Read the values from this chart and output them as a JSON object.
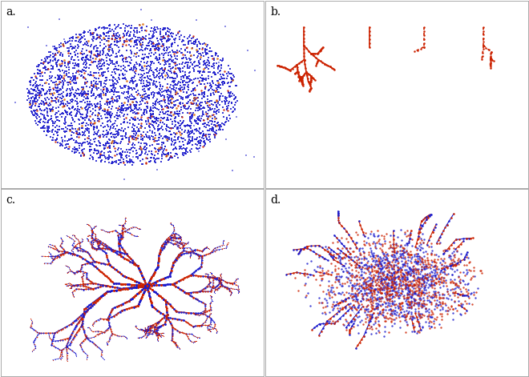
{
  "fig_width": 6.6,
  "fig_height": 4.71,
  "dpi": 100,
  "background_color": "#ffffff",
  "panel_labels": [
    "a.",
    "b.",
    "c.",
    "d."
  ],
  "label_fontsize": 10,
  "panel_border_color": "#aaaaaa",
  "blue_color": "#1a1acc",
  "red_color": "#cc2200",
  "light_edge_color": "#c8c8d8",
  "orange_color": "#dd6600"
}
